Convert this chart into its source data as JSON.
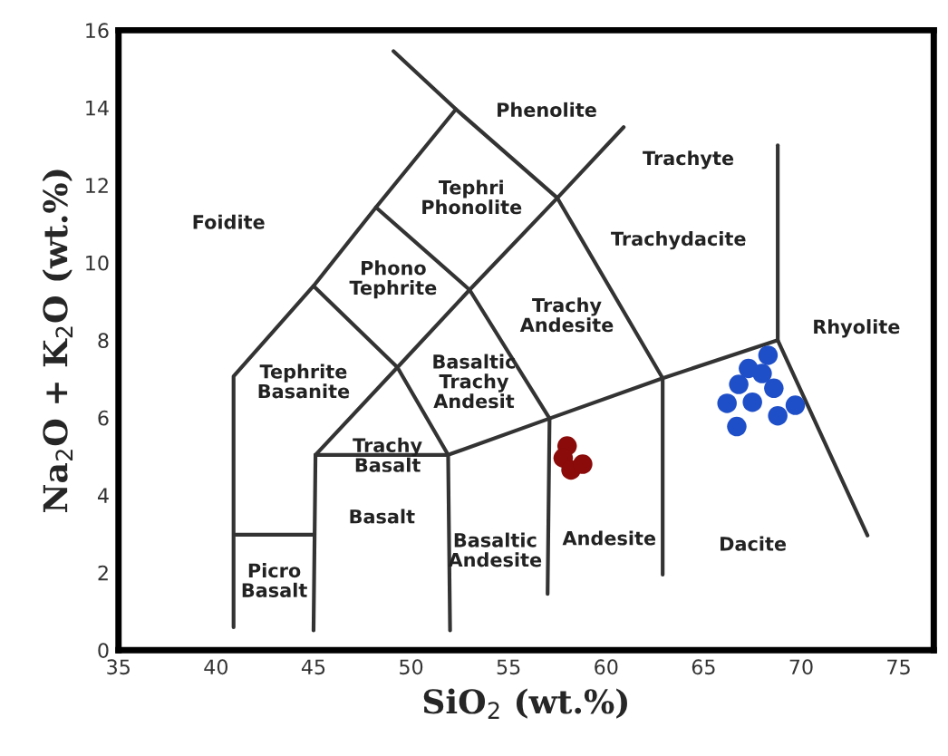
{
  "chart_data": {
    "type": "scatter",
    "xlabel": "SiO$_{2}$ (wt.%)",
    "ylabel": "Na$_{2}$O + K$_{2}$O (wt.%)",
    "xlim": [
      35,
      76.8
    ],
    "ylim": [
      0,
      16
    ],
    "xticks": [
      35,
      40,
      45,
      50,
      55,
      60,
      65,
      70,
      75
    ],
    "yticks": [
      0,
      2,
      4,
      6,
      8,
      10,
      12,
      14,
      16
    ],
    "grid": false,
    "legend": false,
    "series": [
      {
        "type": "line",
        "color": "#333333",
        "marker": "none",
        "x": [
          40.9,
          40.9,
          45,
          48.2,
          52.3
        ],
        "values": [
          0.59,
          7.07,
          9.4,
          11.43,
          13.96
        ]
      },
      {
        "type": "line",
        "color": "#333333",
        "marker": "none",
        "x": [
          49.1,
          52.3,
          57.5
        ],
        "values": [
          15.46,
          13.96,
          11.67
        ]
      },
      {
        "type": "line",
        "color": "#333333",
        "marker": "none",
        "x": [
          48.2,
          53,
          57.1,
          57.0
        ],
        "values": [
          11.43,
          9.3,
          5.98,
          1.45
        ]
      },
      {
        "type": "line",
        "color": "#333333",
        "marker": "none",
        "x": [
          45,
          49.3,
          51.9
        ],
        "values": [
          9.4,
          7.3,
          5.04
        ]
      },
      {
        "type": "line",
        "color": "#333333",
        "marker": "none",
        "x": [
          57.5,
          53,
          49.3,
          45.1
        ],
        "values": [
          11.67,
          9.3,
          7.3,
          5.04
        ]
      },
      {
        "type": "line",
        "color": "#333333",
        "marker": "none",
        "x": [
          60.9,
          57.5,
          62.9,
          62.9
        ],
        "values": [
          13.5,
          11.67,
          7.02,
          1.95
        ]
      },
      {
        "type": "line",
        "color": "#333333",
        "marker": "none",
        "x": [
          45.1,
          51.9,
          57.1,
          62.9,
          68.8,
          73.4
        ],
        "values": [
          5.04,
          5.04,
          5.98,
          7.02,
          8.0,
          2.96
        ]
      },
      {
        "type": "line",
        "color": "#333333",
        "marker": "none",
        "x": [
          68.8,
          68.8
        ],
        "values": [
          8.0,
          13.03
        ]
      },
      {
        "type": "line",
        "color": "#333333",
        "marker": "none",
        "x": [
          45,
          45.1
        ],
        "values": [
          0.51,
          5.04
        ]
      },
      {
        "type": "line",
        "color": "#333333",
        "marker": "none",
        "x": [
          52,
          51.9
        ],
        "values": [
          0.51,
          5.04
        ]
      },
      {
        "type": "line",
        "color": "#333333",
        "marker": "none",
        "x": [
          41,
          45
        ],
        "values": [
          2.98,
          2.98
        ]
      },
      {
        "color": "#8b0a0a",
        "marker": "circle",
        "x": [
          58.0,
          57.8,
          58.2,
          58.8
        ],
        "values": [
          5.27,
          4.96,
          4.65,
          4.8
        ]
      },
      {
        "color": "#1f4fc8",
        "marker": "circle",
        "x": [
          68.3,
          67.3,
          68.0,
          66.8,
          68.6,
          66.2,
          67.5,
          68.8,
          69.7,
          66.7
        ],
        "values": [
          7.61,
          7.27,
          7.14,
          6.86,
          6.76,
          6.37,
          6.4,
          6.05,
          6.32,
          5.77
        ]
      }
    ],
    "annotations": [
      "Phenolite",
      "Trachyte",
      "Tephri\nPhonolite",
      "Foidite",
      "Trachydacite",
      "Phono\nTephrite",
      "Trachy\nAndesite",
      "Basaltic\nTrachy\nAndesit",
      "Tephrite\nBasanite",
      "Rhyolite",
      "Trachy\nBasalt",
      "Basalt",
      "Basaltic\nAndesite",
      "Andesite",
      "Dacite",
      "Picro\nBasalt"
    ]
  }
}
